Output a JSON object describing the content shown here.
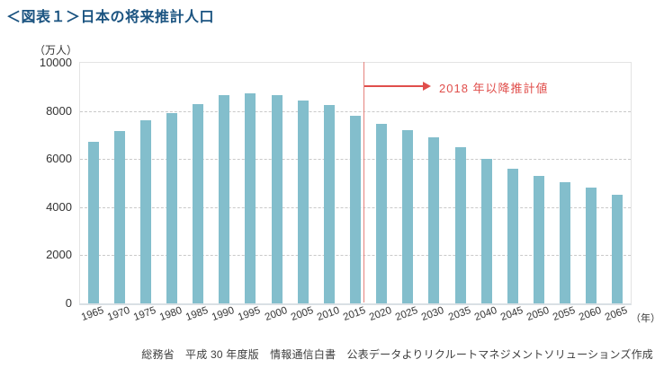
{
  "title": "＜図表１＞日本の将来推計人口",
  "y_unit_label": "（万人）",
  "x_unit_label": "（年）",
  "annotation": {
    "label": "2018 年以降推計値",
    "divider_after_category": "2015"
  },
  "caption": "総務省　平成 30 年度版　情報通信白書　公表データよりリクルートマネジメントソリューションズ作成",
  "colors": {
    "bar": "#83becc",
    "title": "#1a5380",
    "annotation_red": "#e04e4b",
    "divider_red": "#e5827d",
    "grid": "#c9c9c9",
    "axis_text": "#333333"
  },
  "chart_data": {
    "type": "bar",
    "title": "＜図表１＞日本の将来推計人口",
    "xlabel": "（年）",
    "ylabel": "（万人）",
    "categories": [
      "1965",
      "1970",
      "1975",
      "1980",
      "1985",
      "1990",
      "1995",
      "2000",
      "2005",
      "2010",
      "2015",
      "2020",
      "2025",
      "2030",
      "2035",
      "2040",
      "2045",
      "2050",
      "2055",
      "2060",
      "2065"
    ],
    "values": [
      6700,
      7150,
      7600,
      7900,
      8300,
      8650,
      8750,
      8650,
      8450,
      8250,
      7800,
      7450,
      7200,
      6900,
      6500,
      6000,
      5600,
      5300,
      5050,
      4800,
      4500
    ],
    "ylim": [
      0,
      10000
    ],
    "yticks": [
      0,
      2000,
      4000,
      6000,
      8000,
      10000
    ],
    "grid": "horizontal-dashed",
    "legend": "none",
    "annotation": {
      "text": "2018 年以降推計値",
      "divider_after_category": "2015"
    }
  }
}
